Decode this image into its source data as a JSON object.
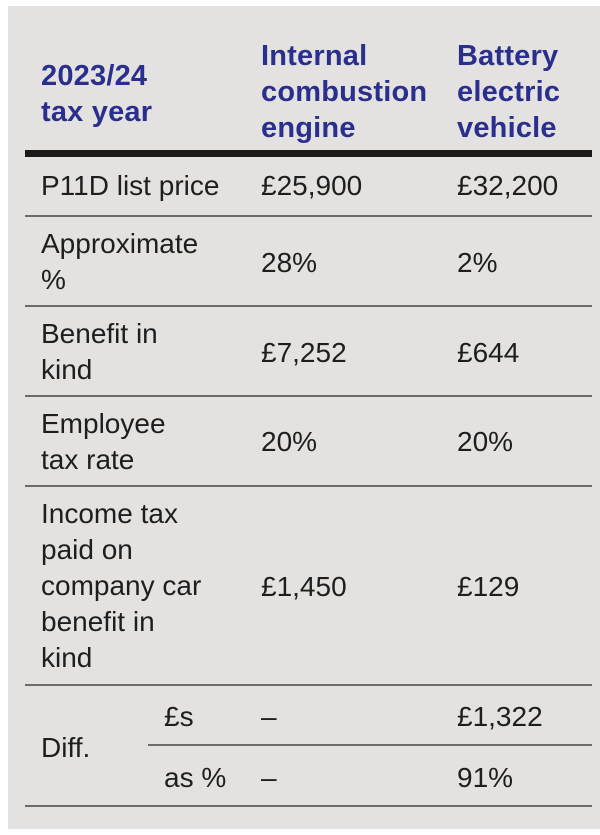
{
  "header": {
    "col0": [
      "2023/24",
      "tax year"
    ],
    "col1": [
      "Internal",
      "combustion",
      "engine"
    ],
    "col2": [
      "Battery",
      "electric",
      "vehicle"
    ]
  },
  "rows": [
    {
      "label": [
        "P11D list price"
      ],
      "ice": "£25,900",
      "bev": "£32,200"
    },
    {
      "label": [
        "Approximate",
        "%"
      ],
      "ice": "28%",
      "bev": "2%"
    },
    {
      "label": [
        "Benefit in",
        "kind"
      ],
      "ice": "£7,252",
      "bev": "£644"
    },
    {
      "label": [
        "Employee",
        "tax rate"
      ],
      "ice": "20%",
      "bev": "20%"
    },
    {
      "label": [
        "Income tax",
        "paid on",
        "company car",
        "benefit in",
        "kind"
      ],
      "ice": "£1,450",
      "bev": "£129"
    }
  ],
  "diff": {
    "label": "Diff.",
    "sub": [
      {
        "label": "£s",
        "ice": "–",
        "bev": "£1,322"
      },
      {
        "label": "as %",
        "ice": "–",
        "bev": "91%"
      }
    ]
  }
}
